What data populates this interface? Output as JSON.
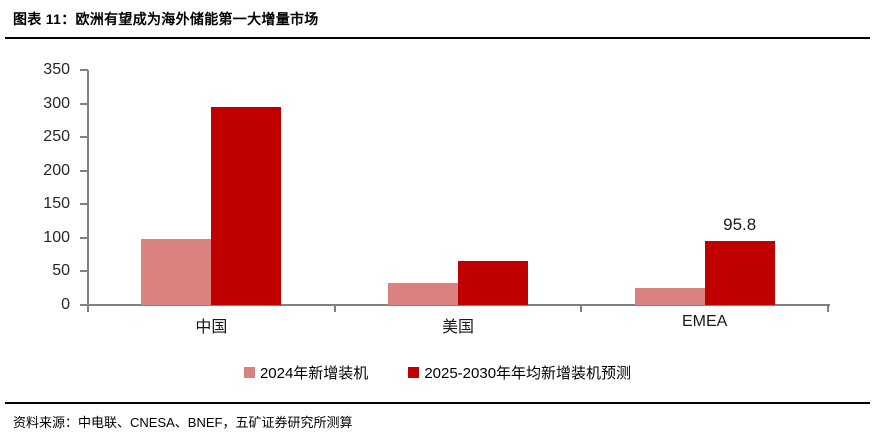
{
  "header": {
    "title": "图表 11：欧洲有望成为海外储能第一大增量市场"
  },
  "chart_data": {
    "type": "bar",
    "categories": [
      "中国",
      "美国",
      "EMEA"
    ],
    "series": [
      {
        "name": "2024年新增装机",
        "color": "#DA827F",
        "values": [
          98,
          33,
          25
        ]
      },
      {
        "name": "2025-2030年年均新增装机预测",
        "color": "#C00000",
        "values": [
          295,
          65,
          95.8
        ]
      }
    ],
    "data_labels": [
      {
        "series_index": 1,
        "category_index": 2,
        "text": "95.8"
      }
    ],
    "xlabel": "",
    "ylabel": "",
    "ylim": [
      0,
      350
    ],
    "yticks": [
      0,
      50,
      100,
      150,
      200,
      250,
      300,
      350
    ],
    "grid": false,
    "legend_position": "bottom",
    "axis_color": "#808080",
    "tick_label_color": "#262626"
  },
  "footer": {
    "source": "资料来源：中电联、CNESA、BNEF，五矿证券研究所测算"
  }
}
